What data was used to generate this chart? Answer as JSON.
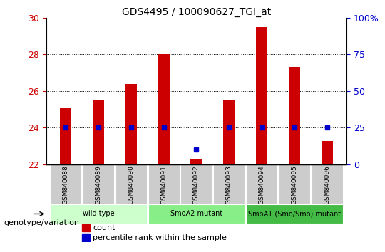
{
  "title": "GDS4495 / 100090627_TGI_at",
  "samples": [
    "GSM840088",
    "GSM840089",
    "GSM840090",
    "GSM840091",
    "GSM840092",
    "GSM840093",
    "GSM840094",
    "GSM840095",
    "GSM840096"
  ],
  "counts": [
    25.05,
    25.5,
    26.4,
    28.0,
    22.3,
    25.5,
    29.5,
    27.3,
    23.3
  ],
  "percentile_pct": [
    25,
    25,
    25,
    25,
    10,
    25,
    25,
    25,
    25
  ],
  "ymin": 22,
  "ymax": 30,
  "yticks": [
    22,
    24,
    26,
    28,
    30
  ],
  "y2ticks": [
    0,
    25,
    50,
    75,
    100
  ],
  "bar_color": "#cc0000",
  "dot_color": "#0000cc",
  "groups": [
    {
      "label": "wild type",
      "start": 0,
      "end": 3,
      "color": "#ccffcc"
    },
    {
      "label": "SmoA2 mutant",
      "start": 3,
      "end": 6,
      "color": "#88ee88"
    },
    {
      "label": "SmoA1 (Smo/Smo) mutant",
      "start": 6,
      "end": 9,
      "color": "#44bb44"
    }
  ],
  "xlabel_text": "genotype/variation",
  "legend_count_label": "count",
  "legend_pct_label": "percentile rank within the sample",
  "tick_label_color_left": "#cc0000",
  "tick_label_color_right": "#0000cc",
  "bar_bottom": 22,
  "bar_width": 0.35,
  "sample_box_color": "#cccccc",
  "title_fontsize": 10
}
